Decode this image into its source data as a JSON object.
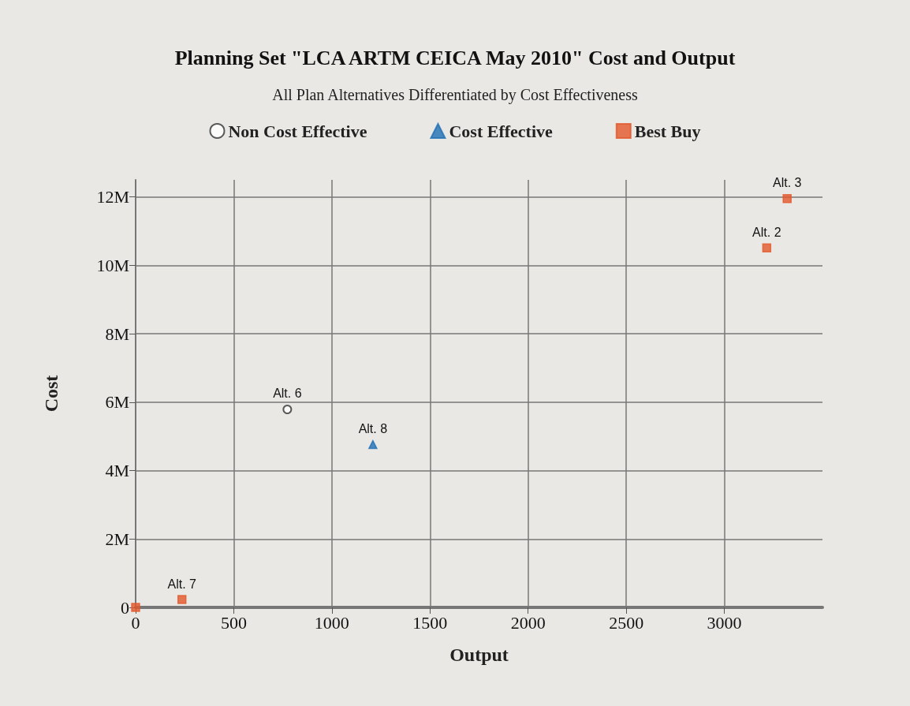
{
  "chart_data": {
    "type": "scatter",
    "title": "Planning Set \"LCA ARTM CEICA May 2010\" Cost and Output",
    "subtitle": "All Plan Alternatives Differentiated by Cost Effectiveness",
    "xlabel": "Output",
    "ylabel": "Cost",
    "xlim": [
      0,
      3500
    ],
    "xticks": [
      0,
      500,
      1000,
      1500,
      2000,
      2500,
      3000
    ],
    "ylim": [
      0,
      12500000
    ],
    "yticks": [
      {
        "value": 0,
        "label": "0"
      },
      {
        "value": 2000000,
        "label": "2M"
      },
      {
        "value": 4000000,
        "label": "4M"
      },
      {
        "value": 6000000,
        "label": "6M"
      },
      {
        "value": 8000000,
        "label": "8M"
      },
      {
        "value": 10000000,
        "label": "10M"
      },
      {
        "value": 12000000,
        "label": "12M"
      }
    ],
    "grid": true,
    "legend": "top",
    "series": [
      {
        "name": "Non Cost Effective",
        "color": "#333333",
        "marker": "circle",
        "x": [
          773
        ],
        "values": [
          5790000
        ]
      },
      {
        "name": "Cost Effective",
        "color": "#1f6fb5",
        "marker": "triangle",
        "x": [
          1209
        ],
        "values": [
          4760000
        ]
      },
      {
        "name": "Best Buy",
        "color": "#e2572b",
        "marker": "square",
        "x": [
          0,
          236,
          3216,
          3320
        ],
        "values": [
          0,
          230000,
          10510000,
          11950000
        ]
      }
    ],
    "annotations": [
      {
        "text": "Alt. 6",
        "x": 773,
        "y": 5790000
      },
      {
        "text": "Alt. 8",
        "x": 1209,
        "y": 4760000
      },
      {
        "text": "Alt. 7",
        "x": 236,
        "y": 230000
      },
      {
        "text": "Alt. 2",
        "x": 3216,
        "y": 10510000
      },
      {
        "text": "Alt. 3",
        "x": 3320,
        "y": 11950000
      }
    ]
  }
}
